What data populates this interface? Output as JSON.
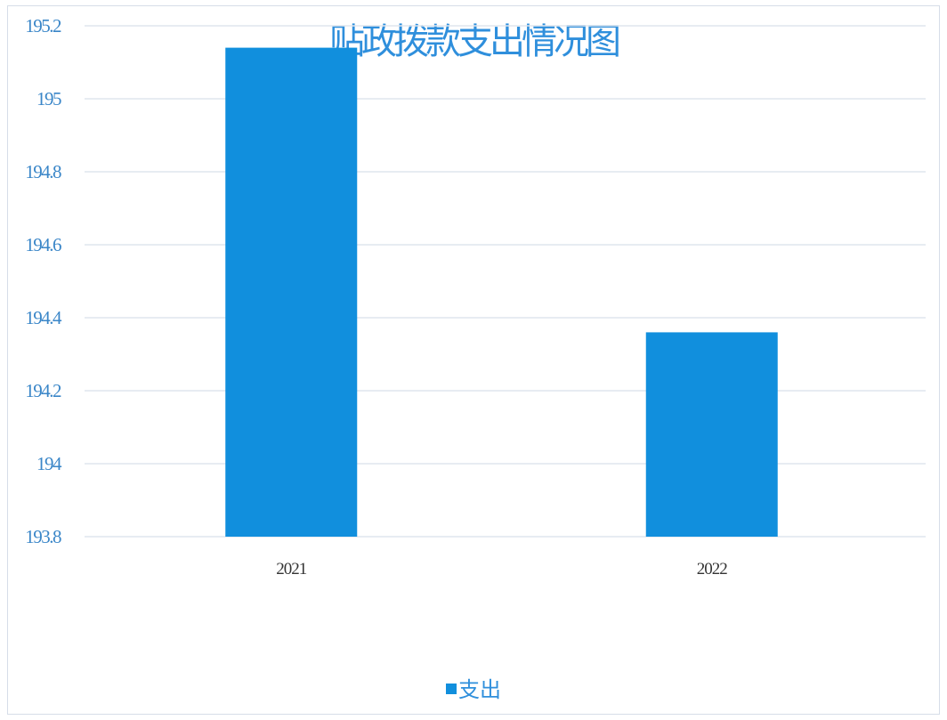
{
  "colors": {
    "bar": "#118fdd",
    "title": "#2f8fdc",
    "ytick": "#3a86c8",
    "grid": "#dfe6ee"
  },
  "chart_data": {
    "type": "bar",
    "title": "贴政拨款支出情况图",
    "categories": [
      "2021",
      "2022"
    ],
    "series": [
      {
        "name": "支出",
        "values": [
          195.14,
          194.36
        ]
      }
    ],
    "ylim": [
      193.8,
      195.2
    ],
    "yticks": [
      "193.8",
      "194",
      "194.2",
      "194.4",
      "194.6",
      "194.8",
      "195",
      "195.2"
    ],
    "xlabel": "",
    "ylabel": "",
    "grid": true,
    "legend_position": "bottom"
  }
}
